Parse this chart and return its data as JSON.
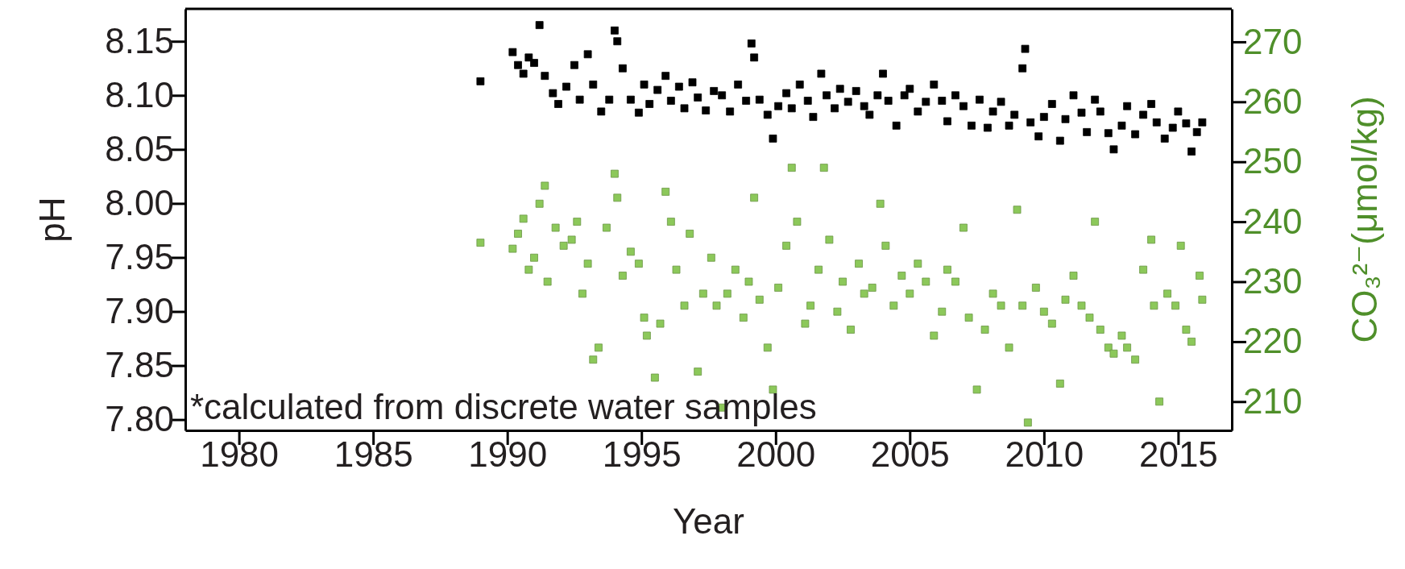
{
  "chart_data": {
    "type": "scatter",
    "xlabel": "Year",
    "ylabel": "pH",
    "y2label": "CO₃²⁻(μmol/kg)",
    "marker": "square",
    "legend": false,
    "grid": false,
    "annotations": [
      "*calculated from discrete water samples"
    ],
    "xlim": [
      1978,
      2017
    ],
    "xticks": [
      1980,
      1985,
      1990,
      1995,
      2000,
      2005,
      2010,
      2015
    ],
    "ylim": [
      7.79,
      8.18
    ],
    "yticks": [
      {
        "value": 7.8,
        "label": "7.80"
      },
      {
        "value": 7.85,
        "label": "7.85"
      },
      {
        "value": 7.9,
        "label": "7.90"
      },
      {
        "value": 7.95,
        "label": "7.95"
      },
      {
        "value": 8.0,
        "label": "8.00"
      },
      {
        "value": 8.05,
        "label": "8.05"
      },
      {
        "value": 8.1,
        "label": "8.10"
      },
      {
        "value": 8.15,
        "label": "8.15"
      }
    ],
    "y2lim": [
      205.2,
      275.5
    ],
    "y2ticks": [
      210,
      220,
      230,
      240,
      250,
      260,
      270
    ],
    "series": [
      {
        "color": "#000000",
        "x": [
          1989.0,
          1990.2,
          1990.4,
          1990.6,
          1990.8,
          1991.0,
          1991.2,
          1991.4,
          1991.7,
          1991.9,
          1992.2,
          1992.5,
          1992.7,
          1993.0,
          1993.2,
          1993.5,
          1993.8,
          1994.0,
          1994.1,
          1994.3,
          1994.6,
          1994.9,
          1995.1,
          1995.3,
          1995.6,
          1995.9,
          1996.1,
          1996.4,
          1996.6,
          1996.9,
          1997.1,
          1997.4,
          1997.7,
          1998.0,
          1998.3,
          1998.6,
          1998.9,
          1999.1,
          1999.2,
          1999.4,
          1999.7,
          1999.9,
          2000.1,
          2000.4,
          2000.6,
          2000.9,
          2001.2,
          2001.4,
          2001.7,
          2001.9,
          2002.2,
          2002.4,
          2002.7,
          2003.0,
          2003.3,
          2003.5,
          2003.8,
          2004.0,
          2004.2,
          2004.5,
          2004.8,
          2005.0,
          2005.3,
          2005.6,
          2005.9,
          2006.2,
          2006.4,
          2006.7,
          2007.0,
          2007.3,
          2007.6,
          2007.9,
          2008.1,
          2008.4,
          2008.7,
          2008.9,
          2009.2,
          2009.3,
          2009.5,
          2009.8,
          2010.0,
          2010.3,
          2010.6,
          2010.8,
          2011.1,
          2011.4,
          2011.6,
          2011.9,
          2012.1,
          2012.4,
          2012.6,
          2012.9,
          2013.1,
          2013.4,
          2013.7,
          2014.0,
          2014.2,
          2014.5,
          2014.8,
          2015.0,
          2015.3,
          2015.5,
          2015.7,
          2015.9
        ],
        "values": [
          8.113,
          8.14,
          8.128,
          8.12,
          8.135,
          8.13,
          8.165,
          8.118,
          8.102,
          8.092,
          8.108,
          8.128,
          8.096,
          8.138,
          8.11,
          8.085,
          8.096,
          8.16,
          8.15,
          8.125,
          8.096,
          8.084,
          8.11,
          8.092,
          8.105,
          8.118,
          8.095,
          8.108,
          8.088,
          8.112,
          8.098,
          8.086,
          8.104,
          8.1,
          8.085,
          8.11,
          8.095,
          8.148,
          8.135,
          8.096,
          8.082,
          8.06,
          8.09,
          8.102,
          8.088,
          8.11,
          8.095,
          8.08,
          8.12,
          8.1,
          8.088,
          8.106,
          8.094,
          8.104,
          8.09,
          8.082,
          8.1,
          8.12,
          8.095,
          8.072,
          8.1,
          8.106,
          8.085,
          8.094,
          8.11,
          8.095,
          8.076,
          8.1,
          8.09,
          8.072,
          8.096,
          8.07,
          8.085,
          8.094,
          8.072,
          8.082,
          8.125,
          8.143,
          8.075,
          8.062,
          8.08,
          8.092,
          8.058,
          8.078,
          8.1,
          8.084,
          8.066,
          8.096,
          8.085,
          8.065,
          8.05,
          8.072,
          8.09,
          8.064,
          8.082,
          8.092,
          8.075,
          8.06,
          8.07,
          8.085,
          8.074,
          8.048,
          8.066,
          8.075
        ]
      },
      {
        "color": "#8cc85a",
        "axis": "y2",
        "x": [
          1989.0,
          1990.2,
          1990.4,
          1990.6,
          1990.8,
          1991.0,
          1991.2,
          1991.4,
          1991.5,
          1991.8,
          1992.1,
          1992.4,
          1992.6,
          1992.8,
          1993.0,
          1993.2,
          1993.4,
          1993.7,
          1994.0,
          1994.1,
          1994.3,
          1994.6,
          1994.9,
          1995.1,
          1995.2,
          1995.5,
          1995.7,
          1995.9,
          1996.1,
          1996.3,
          1996.6,
          1996.8,
          1997.1,
          1997.3,
          1997.6,
          1997.8,
          1998.0,
          1998.2,
          1998.5,
          1998.8,
          1999.0,
          1999.2,
          1999.4,
          1999.7,
          1999.9,
          2000.1,
          2000.4,
          2000.6,
          2000.8,
          2001.1,
          2001.3,
          2001.6,
          2001.8,
          2002.0,
          2002.3,
          2002.5,
          2002.8,
          2003.1,
          2003.3,
          2003.6,
          2003.9,
          2004.1,
          2004.4,
          2004.7,
          2005.0,
          2005.3,
          2005.6,
          2005.9,
          2006.2,
          2006.4,
          2006.7,
          2007.0,
          2007.2,
          2007.5,
          2007.8,
          2008.1,
          2008.4,
          2008.7,
          2009.0,
          2009.2,
          2009.4,
          2009.7,
          2010.0,
          2010.3,
          2010.6,
          2010.8,
          2011.1,
          2011.4,
          2011.7,
          2011.9,
          2012.1,
          2012.4,
          2012.6,
          2012.9,
          2013.1,
          2013.4,
          2013.7,
          2014.0,
          2014.1,
          2014.3,
          2014.6,
          2014.9,
          2015.1,
          2015.3,
          2015.5,
          2015.8,
          2015.9
        ],
        "values": [
          236.5,
          235.5,
          238,
          240.5,
          232,
          234,
          243,
          246,
          230,
          239,
          236,
          237,
          240,
          228,
          233,
          217,
          219,
          239,
          248,
          244,
          231,
          235,
          233,
          224,
          221,
          214,
          223,
          245,
          240,
          232,
          226,
          238,
          215,
          228,
          234,
          226,
          209,
          228,
          232,
          224,
          230,
          244,
          227,
          219,
          212,
          229,
          236,
          249,
          240,
          223,
          226,
          232,
          249,
          237,
          225,
          230,
          222,
          233,
          228,
          229,
          243,
          236,
          226,
          231,
          228,
          233,
          230,
          221,
          225,
          232,
          230,
          239,
          224,
          212,
          222,
          228,
          226,
          219,
          242,
          226,
          206.5,
          229,
          225,
          223,
          213,
          227,
          231,
          226,
          224,
          240,
          222,
          219,
          218,
          221,
          219,
          217,
          232,
          237,
          226,
          210,
          228,
          226,
          236,
          222,
          220,
          231,
          227
        ]
      }
    ]
  }
}
